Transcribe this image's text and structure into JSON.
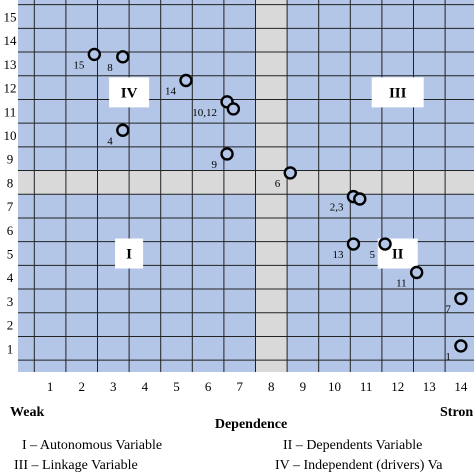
{
  "chart_data": {
    "type": "scatter",
    "xlabel": "Dependence",
    "ylabel": "",
    "x_ticks": [
      1,
      2,
      3,
      4,
      5,
      6,
      7,
      8,
      9,
      10,
      11,
      12,
      13,
      14
    ],
    "y_ticks": [
      1,
      2,
      3,
      4,
      5,
      6,
      7,
      8,
      9,
      10,
      11,
      12,
      13,
      14,
      15
    ],
    "xlim": [
      0,
      14.5
    ],
    "ylim": [
      0,
      15.4
    ],
    "grid": true,
    "axis_ends": {
      "weak": "Weak",
      "strong": "Stron"
    },
    "shaded_band": {
      "x": 8,
      "y": 8
    },
    "quadrants": [
      {
        "label": "IV",
        "x": 3.5,
        "y": 11.8
      },
      {
        "label": "III",
        "x": 12,
        "y": 11.8
      },
      {
        "label": "I",
        "x": 3.5,
        "y": 5
      },
      {
        "label": "II",
        "x": 12,
        "y": 5
      }
    ],
    "points": [
      {
        "label": "15",
        "x": 2.4,
        "y": 13.4
      },
      {
        "label": "8",
        "x": 3.3,
        "y": 13.3
      },
      {
        "label": "14",
        "x": 5.3,
        "y": 12.3
      },
      {
        "label": "10,12",
        "x": 6.6,
        "y": 11.4
      },
      {
        "label": "",
        "x": 6.8,
        "y": 11.1
      },
      {
        "label": "4",
        "x": 3.3,
        "y": 10.2
      },
      {
        "label": "9",
        "x": 6.6,
        "y": 9.2
      },
      {
        "label": "6",
        "x": 8.6,
        "y": 8.4
      },
      {
        "label": "2,3",
        "x": 10.6,
        "y": 7.4
      },
      {
        "label": "",
        "x": 10.8,
        "y": 7.3
      },
      {
        "label": "13",
        "x": 10.6,
        "y": 5.4
      },
      {
        "label": "5",
        "x": 11.6,
        "y": 5.4
      },
      {
        "label": "11",
        "x": 12.6,
        "y": 4.2
      },
      {
        "label": "7",
        "x": 14.0,
        "y": 3.1
      },
      {
        "label": "1",
        "x": 14.0,
        "y": 1.1
      }
    ]
  },
  "legend": {
    "i": "I – Autonomous Variable",
    "ii": "II – Dependents Variable",
    "iii": "III – Linkage Variable",
    "iv": "IV – Independent (drivers) Va"
  }
}
